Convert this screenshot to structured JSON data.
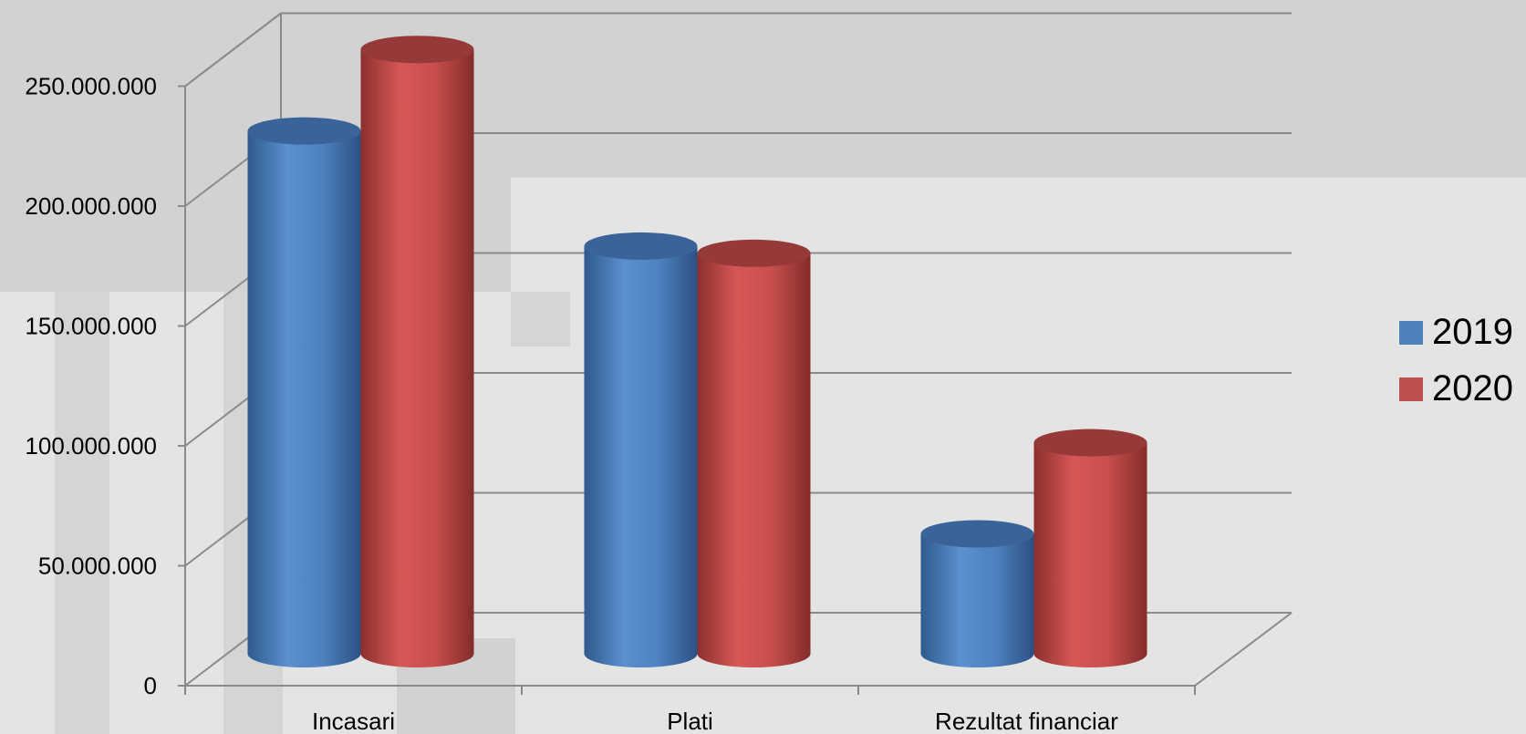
{
  "chart_data": {
    "type": "bar",
    "style": "3d-cylinder",
    "title": "",
    "xlabel": "",
    "ylabel": "",
    "categories": [
      "Incasari",
      "Plati",
      "Rezultat financiar"
    ],
    "series": [
      {
        "name": "2019",
        "values": [
          218000000,
          170000000,
          50000000
        ],
        "color": "#4f81bd"
      },
      {
        "name": "2020",
        "values": [
          252000000,
          167000000,
          88000000
        ],
        "color": "#c0504d"
      }
    ],
    "ylim": [
      0,
      250000000
    ],
    "yticks": [
      0,
      50000000,
      100000000,
      150000000,
      200000000,
      250000000
    ],
    "ytick_labels": [
      "0",
      "50.000.000",
      "100.000.000",
      "150.000.000",
      "200.000.000",
      "250.000.000"
    ],
    "grid": true,
    "legend": "right"
  }
}
